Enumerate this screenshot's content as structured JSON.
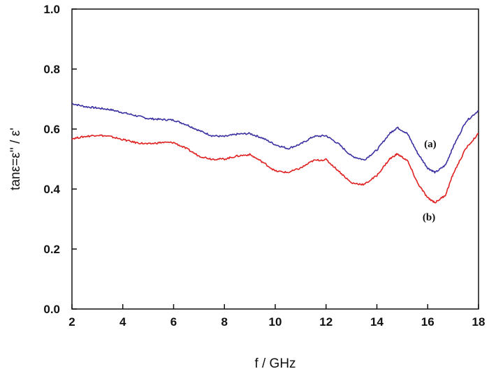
{
  "chart_data": {
    "type": "line",
    "xlabel": "f / GHz",
    "ylabel": "tanε=ε'' / ε'",
    "xlim": [
      2,
      18
    ],
    "ylim": [
      0,
      1.0
    ],
    "xticks": [
      "2",
      "4",
      "6",
      "8",
      "10",
      "12",
      "14",
      "16",
      "18"
    ],
    "yticks": [
      "0.0",
      "0.2",
      "0.4",
      "0.6",
      "0.8",
      "1.0"
    ],
    "grid": false,
    "legend": "none",
    "series": [
      {
        "name": "(a)",
        "color": "#3a2fa0",
        "x": [
          2,
          2.5,
          3,
          3.5,
          4,
          4.5,
          5,
          5.5,
          6,
          6.5,
          7,
          7.5,
          8,
          8.5,
          9,
          9.5,
          10,
          10.5,
          11,
          11.5,
          12,
          12.5,
          13,
          13.5,
          14,
          14.5,
          14.8,
          15.2,
          15.6,
          16,
          16.3,
          16.7,
          17,
          17.5,
          18
        ],
        "y": [
          0.685,
          0.675,
          0.67,
          0.665,
          0.655,
          0.645,
          0.635,
          0.632,
          0.63,
          0.615,
          0.595,
          0.578,
          0.575,
          0.583,
          0.585,
          0.57,
          0.548,
          0.535,
          0.55,
          0.575,
          0.578,
          0.55,
          0.51,
          0.497,
          0.53,
          0.585,
          0.605,
          0.585,
          0.52,
          0.47,
          0.455,
          0.48,
          0.54,
          0.625,
          0.662
        ]
      },
      {
        "name": "(b)",
        "color": "#e02020",
        "x": [
          2,
          2.5,
          3,
          3.5,
          4,
          4.5,
          5,
          5.5,
          6,
          6.5,
          7,
          7.5,
          8,
          8.5,
          9,
          9.5,
          10,
          10.5,
          11,
          11.5,
          12,
          12.5,
          13,
          13.5,
          14,
          14.5,
          14.8,
          15.2,
          15.6,
          16,
          16.3,
          16.7,
          17,
          17.5,
          18
        ],
        "y": [
          0.568,
          0.575,
          0.58,
          0.575,
          0.565,
          0.555,
          0.55,
          0.555,
          0.555,
          0.535,
          0.51,
          0.5,
          0.5,
          0.51,
          0.515,
          0.49,
          0.46,
          0.455,
          0.47,
          0.495,
          0.498,
          0.46,
          0.42,
          0.415,
          0.445,
          0.5,
          0.517,
          0.495,
          0.42,
          0.37,
          0.355,
          0.38,
          0.45,
          0.535,
          0.585
        ]
      }
    ],
    "annotations": [
      {
        "text": "(a)",
        "x": 16.1,
        "y": 0.54
      },
      {
        "text": "(b)",
        "x": 16.05,
        "y": 0.295
      }
    ]
  }
}
